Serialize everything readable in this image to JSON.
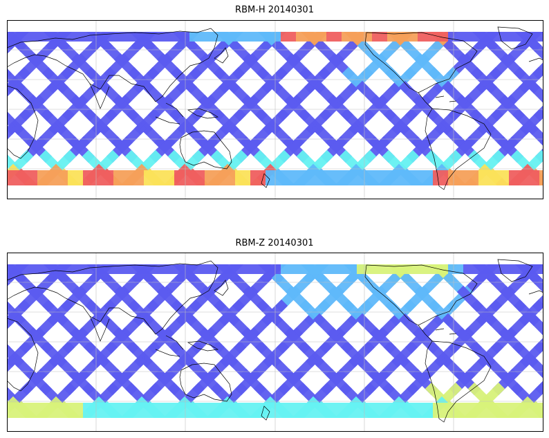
{
  "panels": [
    {
      "title": "RBM-H 20140301",
      "variant": "H"
    },
    {
      "title": "RBM-Z 20140301",
      "variant": "Z"
    }
  ],
  "colormap": {
    "low": "#5b5bf0",
    "mid1": "#5fb9fa",
    "mid2": "#66f2f2",
    "mid3": "#d8f27a",
    "high1": "#fbe25a",
    "high2": "#f5a05a",
    "max": "#ef5f5f"
  },
  "projection": "equirectangular, Pacific-centered",
  "gridlines": true,
  "coastlines": true
}
